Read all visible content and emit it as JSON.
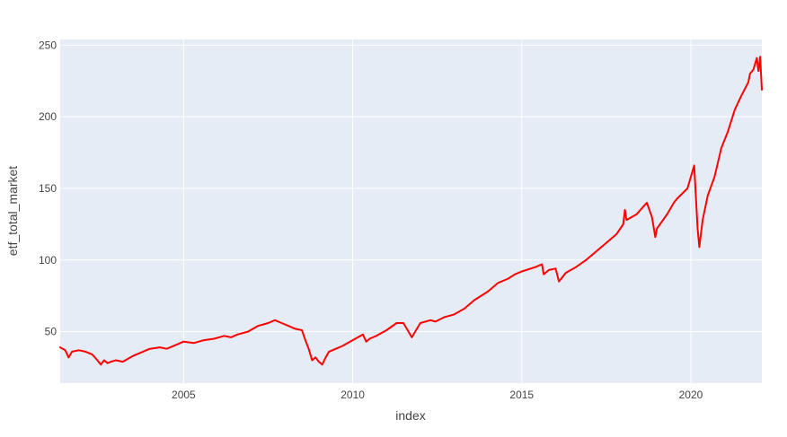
{
  "chart_data": {
    "type": "line",
    "title": "",
    "xlabel": "index",
    "ylabel": "etf_total_market",
    "xlim": [
      2001.35,
      2022.1
    ],
    "ylim": [
      14,
      254
    ],
    "grid": true,
    "legend": "none",
    "colors": {
      "plot_bg": "#e5ecf6",
      "grid": "#ffffff",
      "line": "#ff0000",
      "text": "#444444"
    },
    "x_ticks": [
      {
        "value": 2005,
        "label": "2005"
      },
      {
        "value": 2010,
        "label": "2010"
      },
      {
        "value": 2015,
        "label": "2015"
      },
      {
        "value": 2020,
        "label": "2020"
      }
    ],
    "y_ticks": [
      {
        "value": 50,
        "label": "50"
      },
      {
        "value": 100,
        "label": "100"
      },
      {
        "value": 150,
        "label": "150"
      },
      {
        "value": 200,
        "label": "200"
      },
      {
        "value": 250,
        "label": "250"
      }
    ],
    "series": [
      {
        "x": [
          2001.35,
          2001.5,
          2001.6,
          2001.7,
          2001.9,
          2002.1,
          2002.3,
          2002.45,
          2002.55,
          2002.65,
          2002.75,
          2002.85,
          2003.0,
          2003.2,
          2003.5,
          2003.8,
          2004.0,
          2004.3,
          2004.5,
          2004.8,
          2005.0,
          2005.3,
          2005.6,
          2005.9,
          2006.2,
          2006.4,
          2006.6,
          2006.9,
          2007.2,
          2007.5,
          2007.7,
          2007.9,
          2008.1,
          2008.3,
          2008.5,
          2008.6,
          2008.7,
          2008.8,
          2008.9,
          2009.0,
          2009.1,
          2009.2,
          2009.3,
          2009.5,
          2009.7,
          2010.0,
          2010.3,
          2010.4,
          2010.5,
          2010.7,
          2011.0,
          2011.3,
          2011.5,
          2011.6,
          2011.75,
          2012.0,
          2012.3,
          2012.45,
          2012.7,
          2013.0,
          2013.3,
          2013.6,
          2014.0,
          2014.3,
          2014.6,
          2014.8,
          2015.0,
          2015.4,
          2015.6,
          2015.65,
          2015.8,
          2016.0,
          2016.1,
          2016.3,
          2016.6,
          2016.9,
          2017.2,
          2017.5,
          2017.8,
          2018.0,
          2018.05,
          2018.1,
          2018.4,
          2018.7,
          2018.85,
          2018.95,
          2019.0,
          2019.3,
          2019.5,
          2019.6,
          2019.9,
          2020.05,
          2020.1,
          2020.2,
          2020.25,
          2020.35,
          2020.5,
          2020.7,
          2020.8,
          2020.9,
          2021.1,
          2021.3,
          2021.5,
          2021.7,
          2021.75,
          2021.85,
          2021.95,
          2022.0,
          2022.05,
          2022.1
        ],
        "values": [
          39,
          37,
          32,
          36,
          37,
          36,
          34,
          30,
          27,
          30,
          28,
          29,
          30,
          29,
          33,
          36,
          38,
          39,
          38,
          41,
          43,
          42,
          44,
          45,
          47,
          46,
          48,
          50,
          54,
          56,
          58,
          56,
          54,
          52,
          51,
          44,
          38,
          30,
          32,
          29,
          27,
          32,
          36,
          38,
          40,
          44,
          48,
          43,
          45,
          47,
          51,
          56,
          56,
          52,
          46,
          56,
          58,
          57,
          60,
          62,
          66,
          72,
          78,
          84,
          87,
          90,
          92,
          95,
          97,
          90,
          93,
          94,
          85,
          91,
          95,
          100,
          106,
          112,
          118,
          125,
          135,
          128,
          132,
          140,
          130,
          116,
          122,
          132,
          140,
          143,
          150,
          162,
          166,
          122,
          109,
          128,
          145,
          158,
          168,
          178,
          190,
          205,
          215,
          224,
          230,
          233,
          241,
          232,
          242,
          219
        ]
      }
    ]
  }
}
